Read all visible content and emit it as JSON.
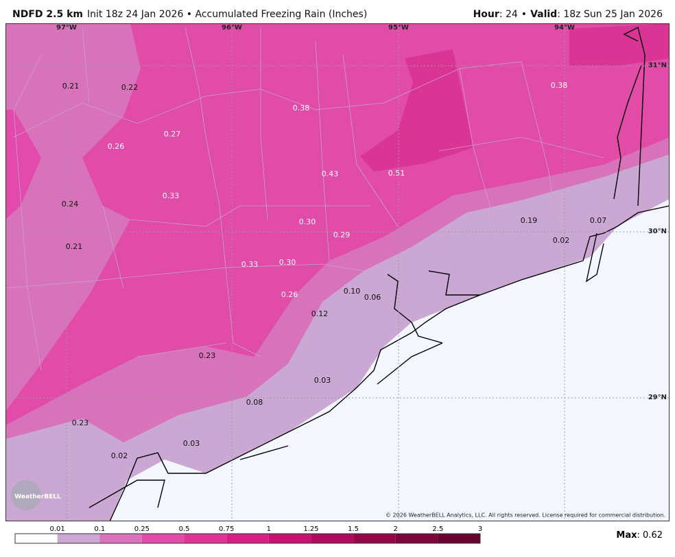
{
  "header": {
    "model": "NDFD 2.5 km",
    "description": "Init 18z 24 Jan 2026 • Accumulated Freezing Rain (Inches)",
    "hour_label": "Hour",
    "hour_value": ": 24",
    "separator": "•",
    "valid_label": "Valid",
    "valid_value": ": 18z Sun 25 Jan 2026"
  },
  "map": {
    "longitudes": [
      "97°W",
      "96°W",
      "95°W",
      "94°W"
    ],
    "latitudes": [
      "31°N",
      "30°N",
      "29°N"
    ],
    "labels": [
      "0.21",
      "0.22",
      "0.27",
      "0.26",
      "0.38",
      "0.38",
      "0.43",
      "0.51",
      "0.24",
      "0.33",
      "0.30",
      "0.29",
      "0.21",
      "0.33",
      "0.30",
      "0.19",
      "0.07",
      "0.02",
      "0.10",
      "0.06",
      "0.26",
      "0.12",
      "0.23",
      "0.03",
      "0.08",
      "0.23",
      "0.03",
      "0.02"
    ],
    "copyright": "© 2026 WeatherBELL Analytics, LLC. All rights reserved. License required for commercial distribution.",
    "logo": "WeatherBELL"
  },
  "colorbar": {
    "ticks": [
      0.01,
      0.1,
      0.25,
      0.5,
      0.75,
      1,
      1.25,
      1.5,
      2,
      2.5,
      3
    ],
    "colors": [
      "#ffffff",
      "#cba7d3",
      "#d872bb",
      "#e04ca8",
      "#dd3596",
      "#d41f83",
      "#c41270",
      "#ac0c5c",
      "#940849",
      "#7c063b",
      "#66042f"
    ],
    "max_label": "Max",
    "max_value": ": 0.62"
  }
}
